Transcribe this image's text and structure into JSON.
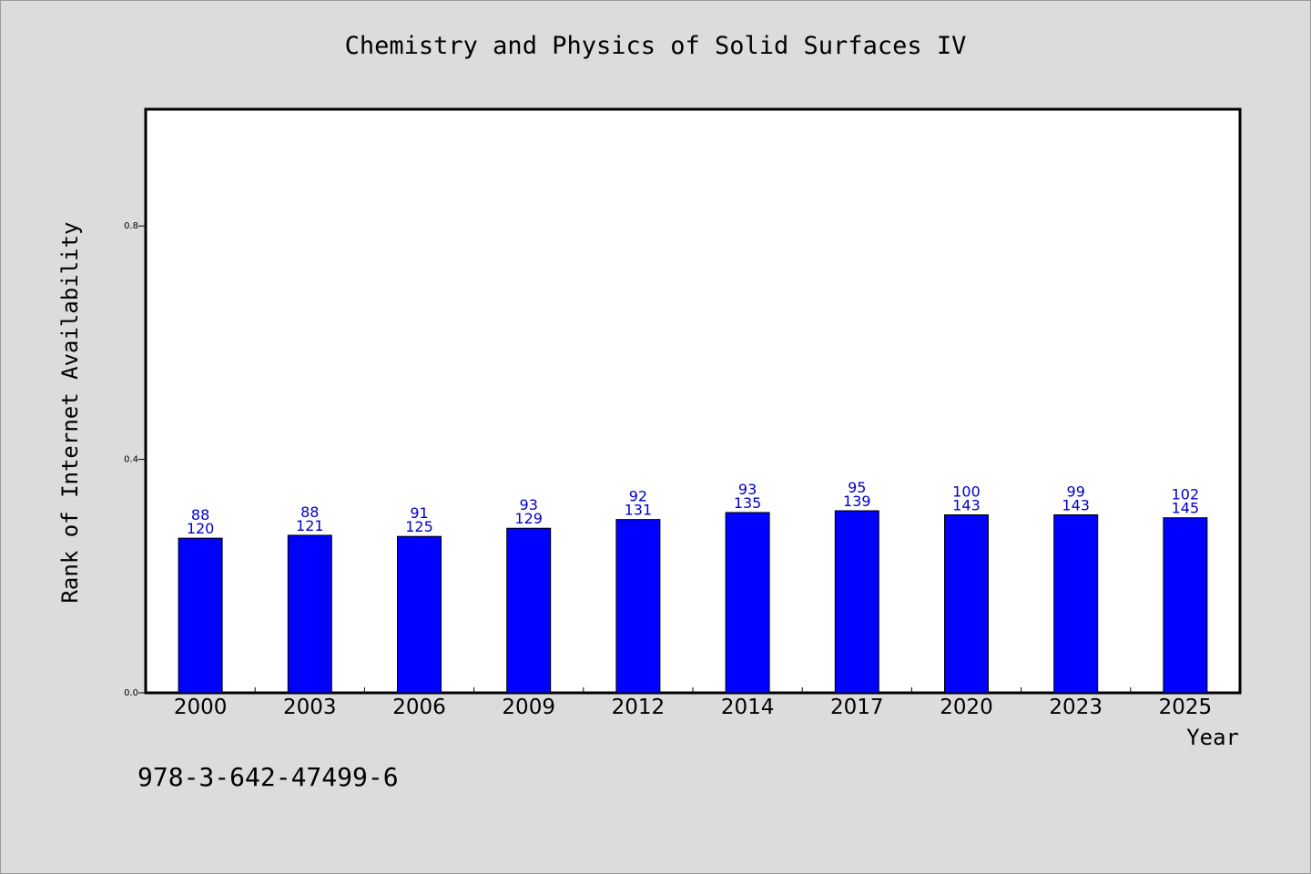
{
  "chart_data": {
    "type": "bar",
    "title": "Chemistry and Physics of Solid Surfaces IV",
    "xlabel": "Year",
    "ylabel": "Rank of Internet Availability",
    "categories": [
      "2000",
      "2003",
      "2006",
      "2009",
      "2012",
      "2014",
      "2017",
      "2020",
      "2023",
      "2025"
    ],
    "values": [
      0.265,
      0.27,
      0.268,
      0.282,
      0.297,
      0.309,
      0.312,
      0.305,
      0.305,
      0.3
    ],
    "label_top": [
      "88",
      "88",
      "91",
      "93",
      "92",
      "93",
      "95",
      "100",
      "99",
      "102"
    ],
    "label_bottom": [
      "120",
      "121",
      "125",
      "129",
      "131",
      "135",
      "139",
      "143",
      "143",
      "145"
    ],
    "ylim": [
      0,
      1.0
    ],
    "yticks": [
      "0.0",
      "0.4",
      "0.8"
    ],
    "ytick_values": [
      0,
      0.4,
      0.8
    ],
    "grid": false,
    "bar_color": "#0000ff",
    "label_color": "#0000cc"
  },
  "footer": {
    "isbn": "978-3-642-47499-6"
  }
}
